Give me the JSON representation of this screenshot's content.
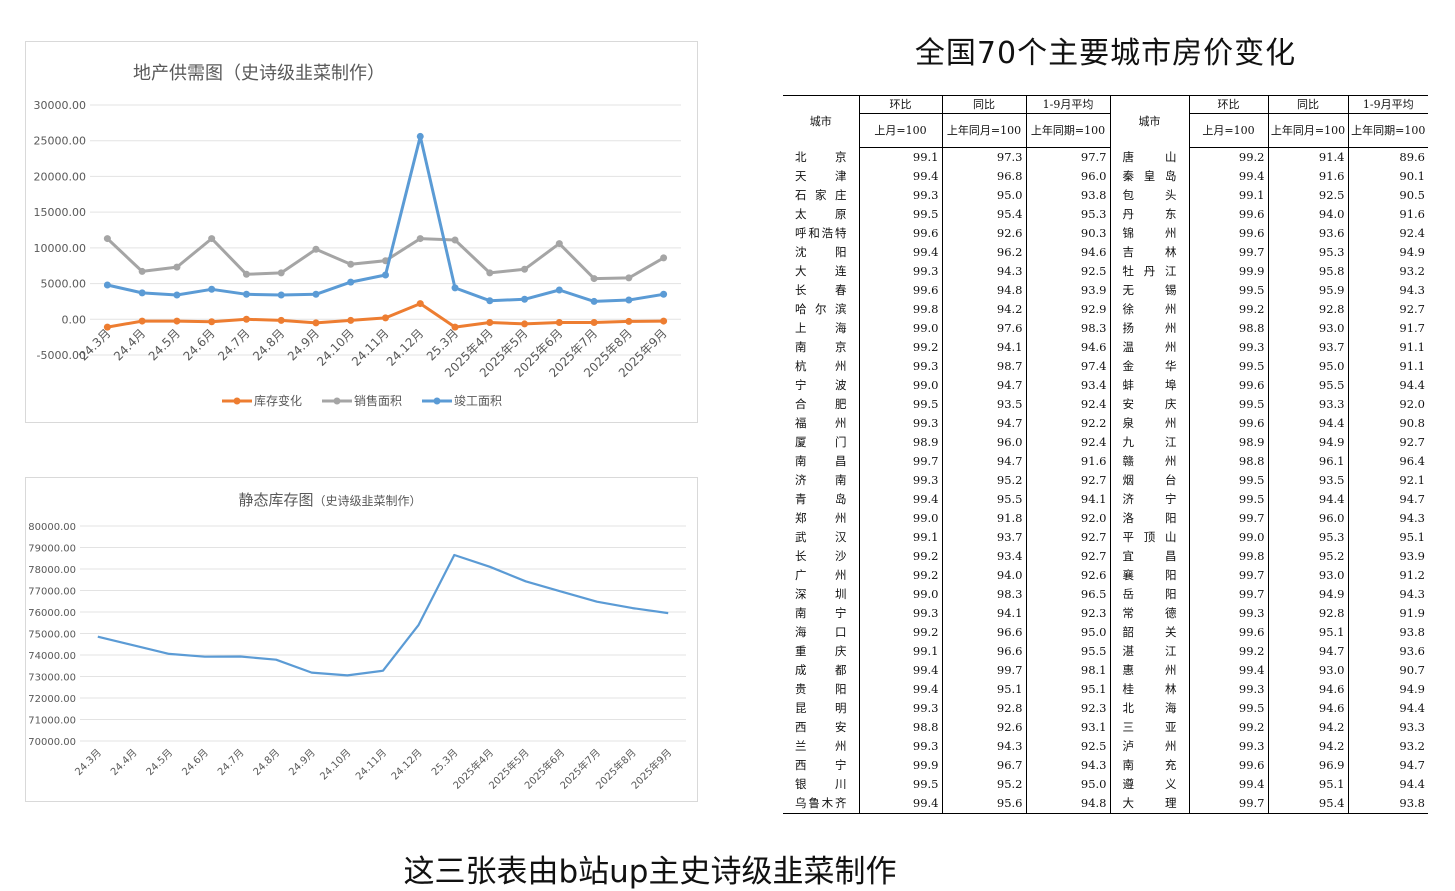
{
  "chart_data": [
    {
      "type": "line",
      "title": "地产供需图（史诗级韭菜制作）",
      "categories": [
        "24.3月",
        "24.4月",
        "24.5月",
        "24.6月",
        "24.7月",
        "24.8月",
        "24.9月",
        "24.10月",
        "24.11月",
        "24.12月",
        "25.3月",
        "2025年4月",
        "2025年5月",
        "2025年6月",
        "2025年7月",
        "2025年8月",
        "2025年9月"
      ],
      "y_ticks": [
        "30000.00",
        "25000.00",
        "20000.00",
        "15000.00",
        "10000.00",
        "5000.00",
        "0.00",
        "-5000.00"
      ],
      "ylim": [
        -5000,
        30000
      ],
      "grid": true,
      "legend": "bottom",
      "series": [
        {
          "name": "库存变化",
          "color": "#ED7D31",
          "values": [
            -1100,
            -250,
            -250,
            -350,
            0,
            -150,
            -500,
            -150,
            200,
            2200,
            -1100,
            -450,
            -650,
            -450,
            -450,
            -300,
            -250
          ]
        },
        {
          "name": "销售面积",
          "color": "#A5A5A5",
          "values": [
            11300,
            6700,
            7300,
            11300,
            6300,
            6500,
            9800,
            7700,
            8200,
            11300,
            11100,
            6500,
            7000,
            10600,
            5700,
            5800,
            8600
          ]
        },
        {
          "name": "竣工面积",
          "color": "#5B9BD5",
          "values": [
            4800,
            3700,
            3400,
            4200,
            3500,
            3400,
            3500,
            5200,
            6200,
            25600,
            4400,
            2600,
            2800,
            4100,
            2500,
            2700,
            3500
          ]
        }
      ]
    },
    {
      "type": "line",
      "title": "静态库存图",
      "subtitle": "（史诗级韭菜制作）",
      "categories": [
        "24.3月",
        "24.4月",
        "24.5月",
        "24.6月",
        "24.7月",
        "24.8月",
        "24.9月",
        "24.10月",
        "24.11月",
        "24.12月",
        "25.3月",
        "2025年4月",
        "2025年5月",
        "2025年6月",
        "2025年7月",
        "2025年8月",
        "2025年9月"
      ],
      "y_ticks": [
        "80000.00",
        "79000.00",
        "78000.00",
        "77000.00",
        "76000.00",
        "75000.00",
        "74000.00",
        "73000.00",
        "72000.00",
        "71000.00",
        "70000.00"
      ],
      "ylim": [
        70000,
        80000
      ],
      "grid": true,
      "series": [
        {
          "color": "#5B9BD5",
          "values": [
            74850,
            74450,
            74050,
            73920,
            73930,
            73780,
            73180,
            73050,
            73270,
            75400,
            78650,
            78100,
            77430,
            76950,
            76480,
            76180,
            75950
          ]
        }
      ]
    },
    {
      "type": "table",
      "title": "全国70个主要城市房价变化",
      "header": {
        "city": "城市",
        "mom": "环比",
        "mom_sub": "上月=100",
        "yoy": "同比",
        "yoy_sub": "上年同月=100",
        "ytd": "1-9月平均",
        "ytd_sub": "上年同期=100"
      },
      "left_rows": [
        [
          "北　京",
          "99.1",
          "97.3",
          "97.7"
        ],
        [
          "天　津",
          "99.4",
          "96.8",
          "96.0"
        ],
        [
          "石家庄",
          "99.3",
          "95.0",
          "93.8"
        ],
        [
          "太　原",
          "99.5",
          "95.4",
          "95.3"
        ],
        [
          "呼和浩特",
          "99.6",
          "92.6",
          "90.3"
        ],
        [
          "沈　阳",
          "99.4",
          "96.2",
          "94.6"
        ],
        [
          "大　连",
          "99.3",
          "94.3",
          "92.5"
        ],
        [
          "长　春",
          "99.6",
          "94.8",
          "93.9"
        ],
        [
          "哈尔滨",
          "99.8",
          "94.2",
          "92.9"
        ],
        [
          "上　海",
          "99.0",
          "97.6",
          "98.3"
        ],
        [
          "南　京",
          "99.2",
          "94.1",
          "94.6"
        ],
        [
          "杭　州",
          "99.3",
          "98.7",
          "97.4"
        ],
        [
          "宁　波",
          "99.0",
          "94.7",
          "93.4"
        ],
        [
          "合　肥",
          "99.5",
          "93.5",
          "92.4"
        ],
        [
          "福　州",
          "99.3",
          "94.7",
          "92.2"
        ],
        [
          "厦　门",
          "98.9",
          "96.0",
          "92.4"
        ],
        [
          "南　昌",
          "99.7",
          "94.7",
          "91.6"
        ],
        [
          "济　南",
          "99.3",
          "95.2",
          "92.7"
        ],
        [
          "青　岛",
          "99.4",
          "95.5",
          "94.1"
        ],
        [
          "郑　州",
          "99.0",
          "91.8",
          "92.0"
        ],
        [
          "武　汉",
          "99.1",
          "93.7",
          "92.7"
        ],
        [
          "长　沙",
          "99.2",
          "93.4",
          "92.7"
        ],
        [
          "广　州",
          "99.2",
          "94.0",
          "92.6"
        ],
        [
          "深　圳",
          "99.0",
          "98.3",
          "96.5"
        ],
        [
          "南　宁",
          "99.3",
          "94.1",
          "92.3"
        ],
        [
          "海　口",
          "99.2",
          "96.6",
          "95.0"
        ],
        [
          "重　庆",
          "99.1",
          "96.6",
          "95.5"
        ],
        [
          "成　都",
          "99.4",
          "99.7",
          "98.1"
        ],
        [
          "贵　阳",
          "99.4",
          "95.1",
          "95.1"
        ],
        [
          "昆　明",
          "99.3",
          "92.8",
          "92.3"
        ],
        [
          "西　安",
          "98.8",
          "92.6",
          "93.1"
        ],
        [
          "兰　州",
          "99.3",
          "94.3",
          "92.5"
        ],
        [
          "西　宁",
          "99.9",
          "96.7",
          "94.3"
        ],
        [
          "银　川",
          "99.5",
          "95.2",
          "95.0"
        ],
        [
          "乌鲁木齐",
          "99.4",
          "95.6",
          "94.8"
        ]
      ],
      "right_rows": [
        [
          "唐　山",
          "99.2",
          "91.4",
          "89.6"
        ],
        [
          "秦皇岛",
          "99.4",
          "91.6",
          "90.1"
        ],
        [
          "包　头",
          "99.1",
          "92.5",
          "90.5"
        ],
        [
          "丹　东",
          "99.6",
          "94.0",
          "91.6"
        ],
        [
          "锦　州",
          "99.6",
          "93.6",
          "92.4"
        ],
        [
          "吉　林",
          "99.7",
          "95.3",
          "94.9"
        ],
        [
          "牡丹江",
          "99.9",
          "95.8",
          "93.2"
        ],
        [
          "无　锡",
          "99.5",
          "95.9",
          "94.3"
        ],
        [
          "徐　州",
          "99.2",
          "92.8",
          "92.7"
        ],
        [
          "扬　州",
          "98.8",
          "93.0",
          "91.7"
        ],
        [
          "温　州",
          "99.3",
          "93.7",
          "91.1"
        ],
        [
          "金　华",
          "99.5",
          "95.0",
          "91.1"
        ],
        [
          "蚌　埠",
          "99.6",
          "95.5",
          "94.4"
        ],
        [
          "安　庆",
          "99.5",
          "93.3",
          "92.0"
        ],
        [
          "泉　州",
          "99.6",
          "94.4",
          "90.8"
        ],
        [
          "九　江",
          "98.9",
          "94.9",
          "92.7"
        ],
        [
          "赣　州",
          "98.8",
          "96.1",
          "96.4"
        ],
        [
          "烟　台",
          "99.5",
          "93.5",
          "92.1"
        ],
        [
          "济　宁",
          "99.5",
          "94.4",
          "94.7"
        ],
        [
          "洛　阳",
          "99.7",
          "96.0",
          "94.3"
        ],
        [
          "平顶山",
          "99.0",
          "95.3",
          "95.1"
        ],
        [
          "宜　昌",
          "99.8",
          "95.2",
          "93.9"
        ],
        [
          "襄　阳",
          "99.7",
          "93.0",
          "91.2"
        ],
        [
          "岳　阳",
          "99.7",
          "94.9",
          "94.3"
        ],
        [
          "常　德",
          "99.3",
          "92.8",
          "91.9"
        ],
        [
          "韶　关",
          "99.6",
          "95.1",
          "93.8"
        ],
        [
          "湛　江",
          "99.2",
          "94.7",
          "93.6"
        ],
        [
          "惠　州",
          "99.4",
          "93.0",
          "90.7"
        ],
        [
          "桂　林",
          "99.3",
          "94.6",
          "94.9"
        ],
        [
          "北　海",
          "99.5",
          "94.6",
          "94.4"
        ],
        [
          "三　亚",
          "99.2",
          "94.2",
          "93.3"
        ],
        [
          "泸　州",
          "99.3",
          "94.2",
          "93.2"
        ],
        [
          "南　充",
          "99.6",
          "96.9",
          "94.7"
        ],
        [
          "遵　义",
          "99.4",
          "95.1",
          "94.4"
        ],
        [
          "大　理",
          "99.7",
          "95.4",
          "93.8"
        ]
      ]
    }
  ],
  "footer": {
    "caption": "这三张表由b站up主史诗级韭菜制作"
  }
}
